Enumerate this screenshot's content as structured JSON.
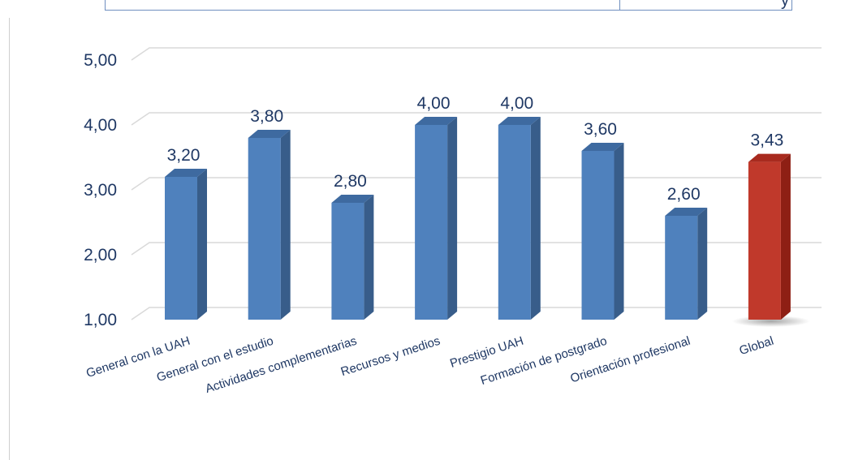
{
  "chart_data": {
    "type": "bar",
    "title": "",
    "xlabel": "",
    "ylabel": "",
    "ylim": [
      1,
      5
    ],
    "y_ticks": [
      "1,00",
      "2,00",
      "3,00",
      "4,00",
      "5,00"
    ],
    "categories": [
      "General con la UAH",
      "General con el estudio",
      "Actividades complementarias",
      "Recursos y medios",
      "Prestigio UAH",
      "Formación de postgrado",
      "Orientación profesional",
      "Global"
    ],
    "values": [
      3.2,
      3.8,
      2.8,
      4.0,
      4.0,
      3.6,
      2.6,
      3.43
    ],
    "value_labels": [
      "3,20",
      "3,80",
      "2,80",
      "4,00",
      "4,00",
      "3,60",
      "2,60",
      "3,43"
    ],
    "highlight": [
      false,
      false,
      false,
      false,
      false,
      false,
      false,
      true
    ],
    "grid": true,
    "legend": "none",
    "colors": {
      "bar": "#4f81bd",
      "bar_side": "#385d8a",
      "bar_top": "#3e6aa0",
      "highlight": "#c0392b",
      "highlight_side": "#8e1f14",
      "highlight_top": "#a82a1e",
      "text": "#1f3864",
      "grid": "#d9d9d9"
    }
  },
  "header": {
    "glyph": "y"
  }
}
